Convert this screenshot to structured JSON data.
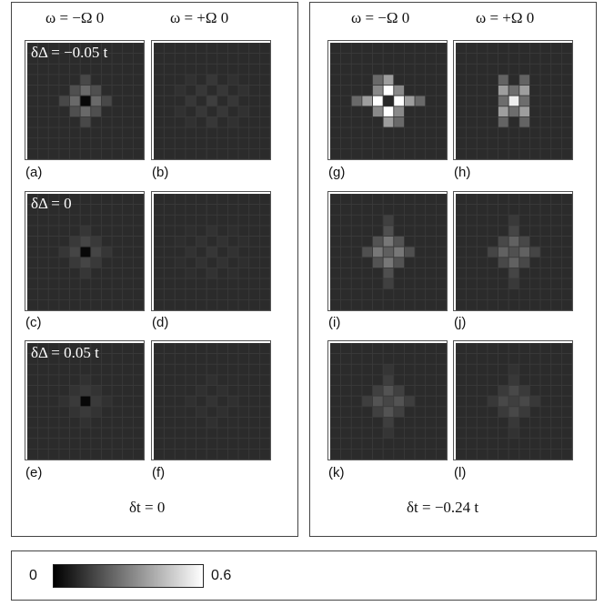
{
  "left_group": {
    "col_headers": [
      "ω = −Ω 0",
      "ω = +Ω 0"
    ],
    "footer": "δt = 0",
    "row_annotations": [
      "δΔ = −0.05 t",
      "δΔ = 0",
      "δΔ = 0.05 t"
    ],
    "panels": [
      {
        "label": "(a)",
        "pattern": "dark_center",
        "intensity": 0.18
      },
      {
        "label": "(b)",
        "pattern": "diffuse",
        "intensity": 0.06
      },
      {
        "label": "(c)",
        "pattern": "dark_center",
        "intensity": 0.08
      },
      {
        "label": "(d)",
        "pattern": "diffuse",
        "intensity": 0.04
      },
      {
        "label": "(e)",
        "pattern": "dark_center",
        "intensity": 0.05
      },
      {
        "label": "(f)",
        "pattern": "diffuse",
        "intensity": 0.03
      }
    ]
  },
  "right_group": {
    "col_headers": [
      "ω = −Ω 0",
      "ω = +Ω 0"
    ],
    "footer": "δt = −0.24 t",
    "panels": [
      {
        "label": "(g)",
        "pattern": "bright_cross",
        "intensity": 0.6
      },
      {
        "label": "(h)",
        "pattern": "bright_x",
        "intensity": 0.55
      },
      {
        "label": "(i)",
        "pattern": "cross",
        "intensity": 0.22
      },
      {
        "label": "(j)",
        "pattern": "cross",
        "intensity": 0.16
      },
      {
        "label": "(k)",
        "pattern": "cross",
        "intensity": 0.12
      },
      {
        "label": "(l)",
        "pattern": "cross",
        "intensity": 0.09
      }
    ]
  },
  "colorbar": {
    "min_label": "0",
    "max_label": "0.6",
    "min": 0,
    "max": 0.6
  },
  "colors": {
    "background_cell": "#2b2b2b",
    "grid_line": "#3a3a3a"
  }
}
